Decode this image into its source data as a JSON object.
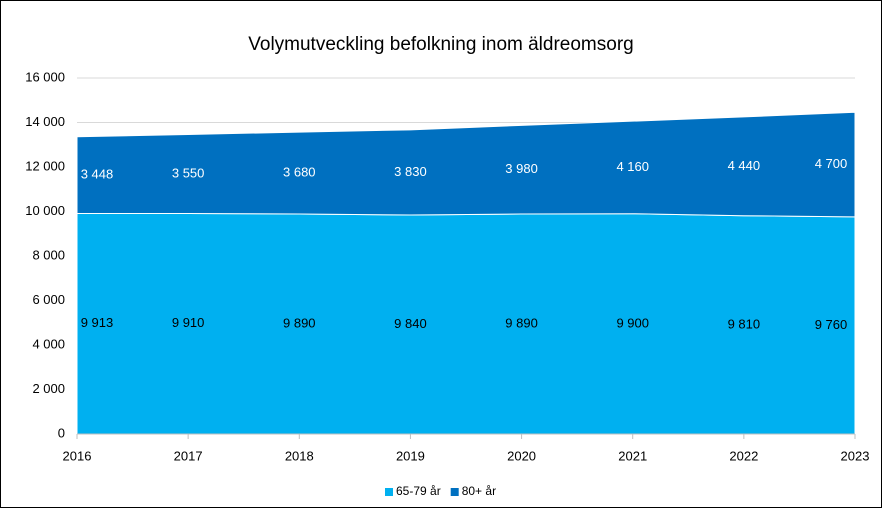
{
  "chart_data": {
    "type": "stacked_area",
    "title": "Volymutveckling befolkning inom äldreomsorg",
    "categories": [
      "2016",
      "2017",
      "2018",
      "2019",
      "2020",
      "2021",
      "2022",
      "2023"
    ],
    "series": [
      {
        "name": "65-79 år",
        "color": "#00b0f0",
        "label_color": "#000000",
        "values": [
          9913,
          9910,
          9890,
          9840,
          9890,
          9900,
          9810,
          9760
        ],
        "value_labels": [
          "9 913",
          "9 910",
          "9 890",
          "9 840",
          "9 890",
          "9 900",
          "9 810",
          "9 760"
        ]
      },
      {
        "name": "80+ år",
        "color": "#0070c0",
        "label_color": "#ffffff",
        "values": [
          3448,
          3550,
          3680,
          3830,
          3980,
          4160,
          4440,
          4700
        ],
        "value_labels": [
          "3 448",
          "3 550",
          "3 680",
          "3 830",
          "3 980",
          "4 160",
          "4 440",
          "4 700"
        ]
      }
    ],
    "ylim": [
      0,
      16000
    ],
    "yticks": [
      0,
      {
        "value": 2000,
        "label": "2 000"
      },
      {
        "value": 4000,
        "label": "4 000"
      },
      {
        "value": 6000,
        "label": "6 000"
      },
      {
        "value": 8000,
        "label": "8 000"
      },
      {
        "value": 10000,
        "label": "10 000"
      },
      {
        "value": 12000,
        "label": "12 000"
      },
      {
        "value": 14000,
        "label": "14 000"
      },
      {
        "value": 16000,
        "label": "16 000"
      }
    ],
    "grid": true,
    "legend": "bottom"
  }
}
